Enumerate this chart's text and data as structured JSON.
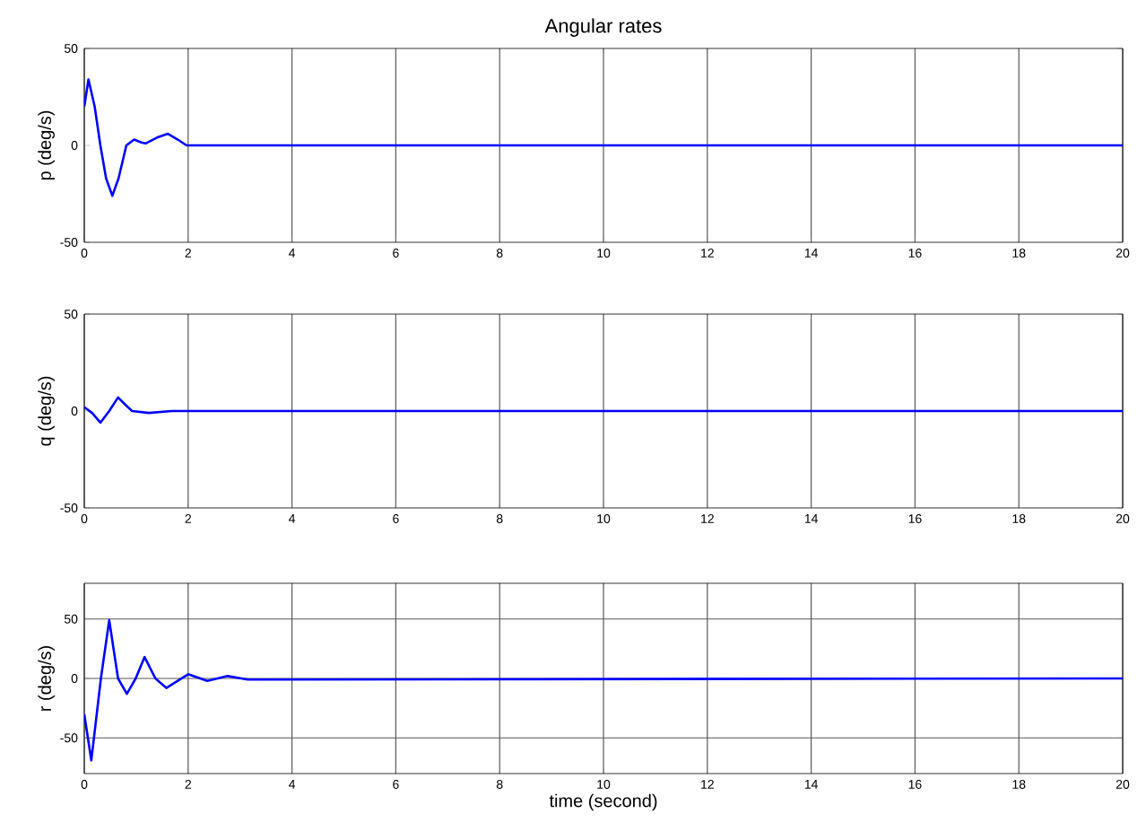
{
  "chart_data": [
    {
      "type": "line",
      "title": "Angular rates",
      "ylabel": "p (deg/s)",
      "xlim": [
        0,
        20
      ],
      "ylim": [
        -50,
        50
      ],
      "xticks": [
        0,
        2,
        4,
        6,
        8,
        10,
        12,
        14,
        16,
        18,
        20
      ],
      "yticks": [
        -50,
        0,
        50
      ],
      "grid": "x",
      "series": [
        {
          "color": "#0000ff",
          "x": [
            0,
            0.08,
            0.2,
            0.31,
            0.42,
            0.54,
            0.66,
            0.81,
            0.96,
            1.1,
            1.18,
            1.4,
            1.61,
            1.8,
            1.97,
            20
          ],
          "values": [
            20,
            34,
            20,
            0,
            -17,
            -26,
            -17,
            0,
            3,
            1.5,
            1,
            4,
            6,
            3,
            0,
            0
          ]
        }
      ]
    },
    {
      "type": "line",
      "ylabel": "q (deg/s)",
      "xlim": [
        0,
        20
      ],
      "ylim": [
        -50,
        50
      ],
      "xticks": [
        0,
        2,
        4,
        6,
        8,
        10,
        12,
        14,
        16,
        18,
        20
      ],
      "yticks": [
        -50,
        0,
        50
      ],
      "grid": "x",
      "series": [
        {
          "color": "#0000ff",
          "x": [
            0,
            0.15,
            0.31,
            0.48,
            0.65,
            0.8,
            0.92,
            1.24,
            1.69,
            20
          ],
          "values": [
            2,
            -1,
            -6,
            0,
            7,
            3,
            0,
            -1,
            0,
            0
          ]
        }
      ]
    },
    {
      "type": "line",
      "ylabel": "r (deg/s)",
      "xlabel": "time (second)",
      "xlim": [
        0,
        20
      ],
      "ylim": [
        -80,
        80
      ],
      "xticks": [
        0,
        2,
        4,
        6,
        8,
        10,
        12,
        14,
        16,
        18,
        20
      ],
      "yticks": [
        -50,
        0,
        50
      ],
      "grid": true,
      "series": [
        {
          "color": "#0000ff",
          "x": [
            0,
            0.135,
            0.32,
            0.48,
            0.65,
            0.82,
            0.99,
            1.16,
            1.37,
            1.58,
            2.0,
            2.37,
            2.76,
            3.15,
            20
          ],
          "values": [
            -30,
            -69,
            0,
            49,
            0,
            -13,
            0,
            18,
            0,
            -8,
            3.5,
            -2,
            2,
            -1,
            0
          ]
        }
      ]
    }
  ]
}
